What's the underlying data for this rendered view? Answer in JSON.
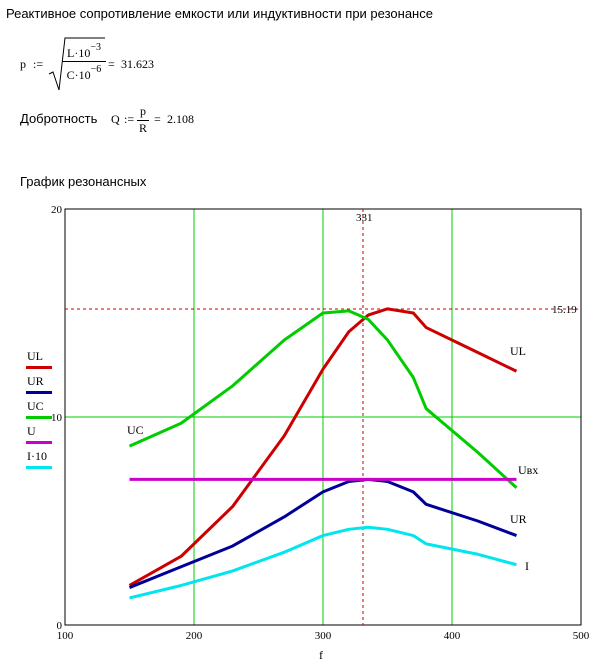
{
  "header": {
    "title": "Реактивное сопротивление емкости или индуктивности при резонансе"
  },
  "formula_p": {
    "lhs": "p",
    "assign": ":=",
    "num_base": "L·10",
    "num_exp": "−3",
    "den_base": "C·10",
    "den_exp": "−6",
    "eq": "=",
    "result": "31.623"
  },
  "formula_q": {
    "label": "Добротность",
    "lhs": "Q",
    "assign": ":=",
    "num": "p",
    "den": "R",
    "eq": "=",
    "result": "2.108"
  },
  "chart_heading": "График резонансных",
  "legend": {
    "items": [
      {
        "label": "UL",
        "color": "#cc0000"
      },
      {
        "label": "UR",
        "color": "#000099"
      },
      {
        "label": "UC",
        "color": "#00cc00"
      },
      {
        "label": "U",
        "color": "#cc00cc"
      },
      {
        "label": "I·10",
        "color": "#00e5ee"
      }
    ]
  },
  "chart_data": {
    "type": "line",
    "xlabel": "f",
    "xlim": [
      100,
      500
    ],
    "ylim": [
      0,
      20
    ],
    "x_ticks": [
      100,
      200,
      300,
      400,
      500
    ],
    "y_ticks": [
      0,
      10,
      20
    ],
    "x_tick_labels": [
      "100",
      "200",
      "300",
      "400",
      "500"
    ],
    "y_tick_labels": [
      "0",
      "10",
      "20"
    ],
    "grid": true,
    "grid_color": "#00cc00",
    "markers": {
      "x_value": 331,
      "x_label": "331",
      "y_value": 15.19,
      "y_label": "15.19",
      "color": "#cc0000"
    },
    "series": [
      {
        "name": "UL",
        "color": "#cc0000",
        "x": [
          150,
          190,
          230,
          270,
          300,
          320,
          335,
          350,
          370,
          380,
          420,
          450
        ],
        "y": [
          1.9,
          3.3,
          5.7,
          9.1,
          12.3,
          14.1,
          14.9,
          15.2,
          15.0,
          14.3,
          13.1,
          12.2
        ]
      },
      {
        "name": "UR",
        "color": "#000099",
        "x": [
          150,
          190,
          230,
          270,
          300,
          320,
          335,
          350,
          370,
          380,
          420,
          450
        ],
        "y": [
          1.8,
          2.8,
          3.8,
          5.2,
          6.4,
          6.9,
          7.0,
          6.9,
          6.4,
          5.8,
          5.0,
          4.3
        ]
      },
      {
        "name": "UC",
        "color": "#00cc00",
        "x": [
          150,
          190,
          230,
          270,
          300,
          320,
          335,
          350,
          370,
          380,
          420,
          450
        ],
        "y": [
          8.6,
          9.7,
          11.5,
          13.7,
          15.0,
          15.1,
          14.7,
          13.7,
          11.9,
          10.4,
          8.3,
          6.6
        ]
      },
      {
        "name": "U",
        "color": "#cc00cc",
        "x": [
          150,
          450
        ],
        "y": [
          7.0,
          7.0
        ]
      },
      {
        "name": "I·10",
        "color": "#00e5ee",
        "x": [
          150,
          190,
          230,
          270,
          300,
          320,
          335,
          350,
          370,
          380,
          420,
          450
        ],
        "y": [
          1.3,
          1.9,
          2.6,
          3.5,
          4.3,
          4.6,
          4.7,
          4.6,
          4.3,
          3.9,
          3.4,
          2.9
        ]
      }
    ],
    "curve_labels": [
      "UL",
      "UC",
      "Uвх",
      "UR",
      "I"
    ]
  }
}
